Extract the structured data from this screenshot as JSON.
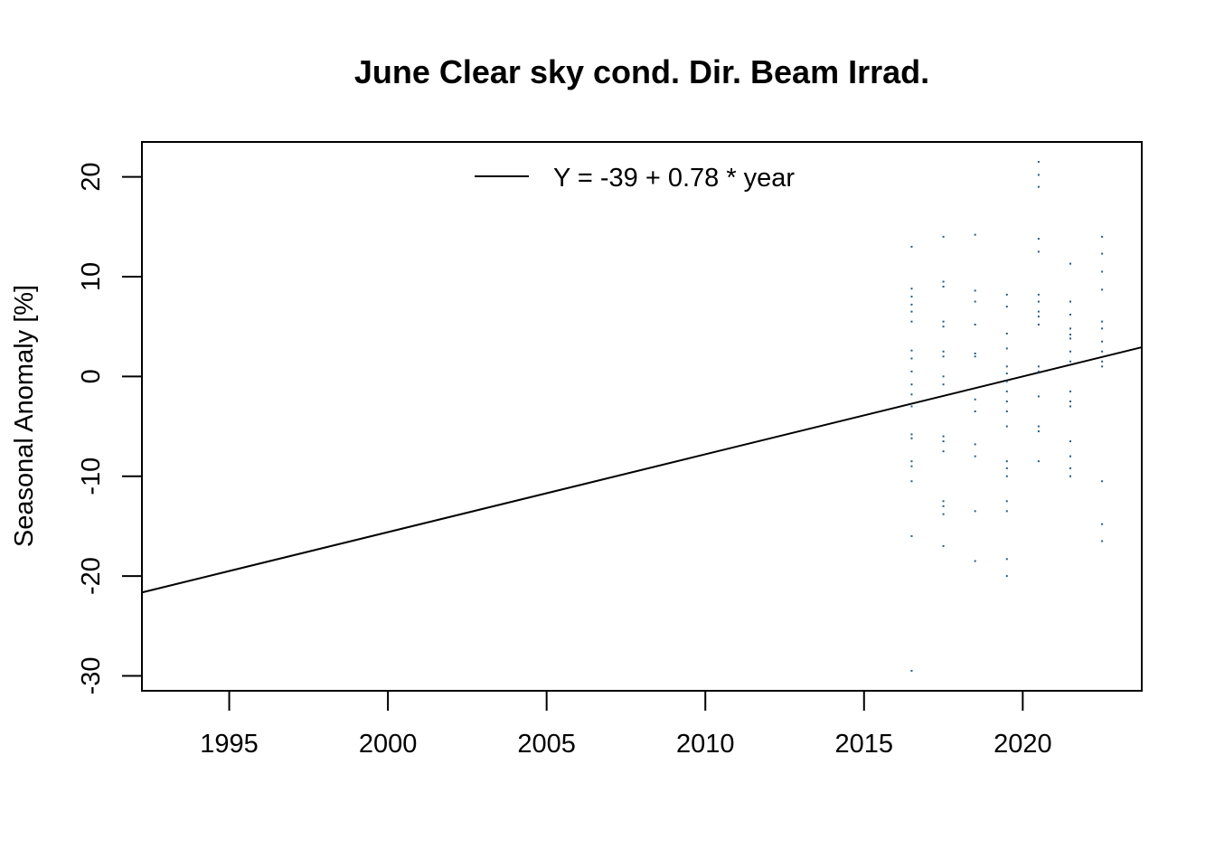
{
  "chart_data": {
    "type": "scatter",
    "title": "June Clear sky cond. Dir. Beam Irrad.",
    "xlabel": "",
    "ylabel": "Seasonal Anomaly [%]",
    "xlim": [
      1992.25,
      2023.75
    ],
    "ylim": [
      -31.5,
      23.5
    ],
    "x_ticks": [
      1995,
      2000,
      2005,
      2010,
      2015,
      2020
    ],
    "y_ticks": [
      20,
      10,
      0,
      -10,
      -20,
      -30
    ],
    "grid": false,
    "legend": {
      "placement": "top",
      "entries": [
        "Y = -39 + 0.78 * year"
      ]
    },
    "colors": {
      "points": "#1f5f8b",
      "line": "#000000",
      "axes": "#000000"
    },
    "trend_line": {
      "intercept": -39,
      "slope": 0.78,
      "year_origin": 1970
    },
    "series": [
      {
        "points": [
          [
            2016.5,
            13.0
          ],
          [
            2016.5,
            8.8
          ],
          [
            2016.5,
            8.0
          ],
          [
            2016.5,
            7.2
          ],
          [
            2016.5,
            6.5
          ],
          [
            2016.5,
            5.5
          ],
          [
            2016.5,
            2.6
          ],
          [
            2016.5,
            1.8
          ],
          [
            2016.5,
            0.5
          ],
          [
            2016.5,
            -0.8
          ],
          [
            2016.5,
            -1.8
          ],
          [
            2016.5,
            -3.0
          ],
          [
            2016.5,
            -5.8
          ],
          [
            2016.5,
            -6.2
          ],
          [
            2016.5,
            -8.5
          ],
          [
            2016.5,
            -9.0
          ],
          [
            2016.5,
            -10.5
          ],
          [
            2016.5,
            -16.0
          ],
          [
            2016.5,
            -29.5
          ],
          [
            2017.5,
            14.0
          ],
          [
            2017.5,
            9.5
          ],
          [
            2017.5,
            9.0
          ],
          [
            2017.5,
            5.5
          ],
          [
            2017.5,
            5.0
          ],
          [
            2017.5,
            2.5
          ],
          [
            2017.5,
            2.0
          ],
          [
            2017.5,
            0.0
          ],
          [
            2017.5,
            -0.8
          ],
          [
            2017.5,
            -6.0
          ],
          [
            2017.5,
            -6.5
          ],
          [
            2017.5,
            -7.5
          ],
          [
            2017.5,
            -12.5
          ],
          [
            2017.5,
            -13.0
          ],
          [
            2017.5,
            -13.8
          ],
          [
            2017.5,
            -17.0
          ],
          [
            2018.5,
            14.2
          ],
          [
            2018.5,
            8.6
          ],
          [
            2018.5,
            7.5
          ],
          [
            2018.5,
            5.2
          ],
          [
            2018.5,
            2.3
          ],
          [
            2018.5,
            2.0
          ],
          [
            2018.5,
            -2.3
          ],
          [
            2018.5,
            -3.5
          ],
          [
            2018.5,
            -6.8
          ],
          [
            2018.5,
            -8.0
          ],
          [
            2018.5,
            -13.5
          ],
          [
            2018.5,
            -18.5
          ],
          [
            2019.5,
            8.2
          ],
          [
            2019.5,
            7.0
          ],
          [
            2019.5,
            4.3
          ],
          [
            2019.5,
            2.8
          ],
          [
            2019.5,
            1.0
          ],
          [
            2019.5,
            0.3
          ],
          [
            2019.5,
            -0.5
          ],
          [
            2019.5,
            -1.5
          ],
          [
            2019.5,
            -2.5
          ],
          [
            2019.5,
            -3.5
          ],
          [
            2019.5,
            -5.0
          ],
          [
            2019.5,
            -8.5
          ],
          [
            2019.5,
            -9.2
          ],
          [
            2019.5,
            -10.0
          ],
          [
            2019.5,
            -12.5
          ],
          [
            2019.5,
            -13.5
          ],
          [
            2019.5,
            -18.3
          ],
          [
            2019.5,
            -20.0
          ],
          [
            2020.5,
            21.5
          ],
          [
            2020.5,
            20.2
          ],
          [
            2020.5,
            19.0
          ],
          [
            2020.5,
            13.8
          ],
          [
            2020.5,
            12.5
          ],
          [
            2020.5,
            8.2
          ],
          [
            2020.5,
            7.5
          ],
          [
            2020.5,
            6.5
          ],
          [
            2020.5,
            6.0
          ],
          [
            2020.5,
            5.2
          ],
          [
            2020.5,
            1.0
          ],
          [
            2020.5,
            0.5
          ],
          [
            2020.5,
            -2.0
          ],
          [
            2020.5,
            -5.0
          ],
          [
            2020.5,
            -5.5
          ],
          [
            2020.5,
            -8.5
          ],
          [
            2021.5,
            11.3
          ],
          [
            2021.5,
            7.5
          ],
          [
            2021.5,
            6.2
          ],
          [
            2021.5,
            4.8
          ],
          [
            2021.5,
            4.2
          ],
          [
            2021.5,
            3.8
          ],
          [
            2021.5,
            2.5
          ],
          [
            2021.5,
            1.5
          ],
          [
            2021.5,
            -1.5
          ],
          [
            2021.5,
            -2.5
          ],
          [
            2021.5,
            -3.0
          ],
          [
            2021.5,
            -6.5
          ],
          [
            2021.5,
            -8.0
          ],
          [
            2021.5,
            -9.2
          ],
          [
            2021.5,
            -10.0
          ],
          [
            2022.5,
            14.0
          ],
          [
            2022.5,
            12.3
          ],
          [
            2022.5,
            10.5
          ],
          [
            2022.5,
            8.7
          ],
          [
            2022.5,
            5.5
          ],
          [
            2022.5,
            4.8
          ],
          [
            2022.5,
            3.5
          ],
          [
            2022.5,
            2.5
          ],
          [
            2022.5,
            1.5
          ],
          [
            2022.5,
            1.0
          ],
          [
            2022.5,
            -10.5
          ],
          [
            2022.5,
            -14.8
          ],
          [
            2022.5,
            -16.5
          ]
        ]
      }
    ]
  }
}
